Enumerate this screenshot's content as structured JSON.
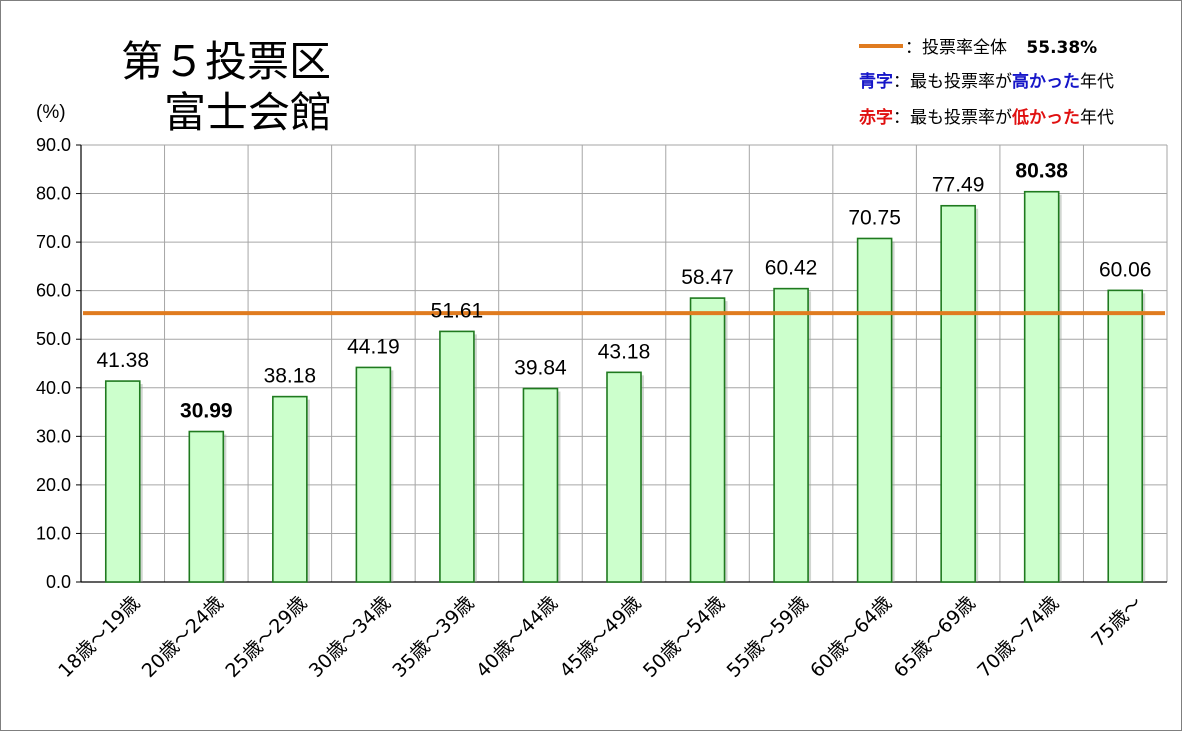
{
  "chart_data": {
    "type": "bar",
    "title_line1": "第５投票区",
    "title_line2": "富士会館",
    "ylabel": "(%)",
    "ylim": [
      0,
      90
    ],
    "yticks": [
      "0.0",
      "10.0",
      "20.0",
      "30.0",
      "40.0",
      "50.0",
      "60.0",
      "70.0",
      "80.0",
      "90.0"
    ],
    "grid": true,
    "categories": [
      "18歳～19歳",
      "20歳～24歳",
      "25歳～29歳",
      "30歳～34歳",
      "35歳～39歳",
      "40歳～44歳",
      "45歳～49歳",
      "50歳～54歳",
      "55歳～59歳",
      "60歳～64歳",
      "65歳～69歳",
      "70歳～74歳",
      "75歳～"
    ],
    "values": [
      41.38,
      30.99,
      38.18,
      44.19,
      51.61,
      39.84,
      43.18,
      58.47,
      60.42,
      70.75,
      77.49,
      80.38,
      60.06
    ],
    "value_labels": [
      "41.38",
      "30.99",
      "38.18",
      "44.19",
      "51.61",
      "39.84",
      "43.18",
      "58.47",
      "60.42",
      "70.75",
      "77.49",
      "80.38",
      "60.06"
    ],
    "reference_line": {
      "value": 55.38,
      "label": "：投票率全体",
      "value_label": "55.38%",
      "color": "#e07b1f"
    },
    "highlight_max_index": 11,
    "highlight_min_index": 1,
    "legend_placement": "top-right",
    "legend": {
      "blue_key": "青字",
      "blue_text_a": "：最も投票率が",
      "blue_emph": "高かった",
      "blue_text_b": "年代",
      "red_key": "赤字",
      "red_text_a": "：最も投票率が",
      "red_emph": "低かった",
      "red_text_b": "年代"
    },
    "colors": {
      "bar_fill": "#ccffcc",
      "bar_stroke": "#1f7a1f",
      "grid": "#a6a6a6",
      "max_label": "#1515c8",
      "min_label": "#e01010",
      "ref_line": "#e07b1f"
    }
  }
}
